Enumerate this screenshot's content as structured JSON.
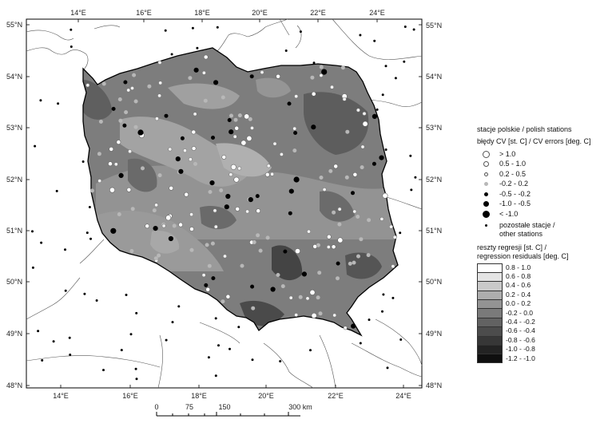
{
  "axes": {
    "lon_top": [
      "14°E",
      "16°E",
      "18°E",
      "20°E",
      "22°E",
      "24°E"
    ],
    "lon_bottom": [
      "14°E",
      "16°E",
      "18°E",
      "20°E",
      "22°E",
      "24°E"
    ],
    "lat_left": [
      "55°N",
      "54°N",
      "53°N",
      "52°N",
      "51°N",
      "50°N",
      "49°N",
      "48°N"
    ],
    "lat_right": [
      "55°N",
      "54°N",
      "53°N",
      "52°N",
      "51°N",
      "50°N",
      "49°N",
      "48°N"
    ]
  },
  "scale_bar": {
    "ticks": [
      "0",
      "75",
      "150",
      "300 km"
    ]
  },
  "legend": {
    "stations_title": "stacje polskie / polish stations",
    "cv_title": "błędy CV [st. C] / CV errors [deg. C]",
    "cv_classes": [
      {
        "label": "> 1.0",
        "fill": "#ffffff",
        "size": 9
      },
      {
        "label": "0.5 - 1.0",
        "fill": "#ffffff",
        "size": 7
      },
      {
        "label": "0.2 - 0.5",
        "fill": "#f2f2f2",
        "size": 5
      },
      {
        "label": "-0.2 - 0.2",
        "fill": "#b8b8b8",
        "size": 5
      },
      {
        "label": "-0.5 - -0.2",
        "fill": "#000000",
        "size": 5
      },
      {
        "label": "-1.0 - -0.5",
        "fill": "#000000",
        "size": 7
      },
      {
        "label": "< -1.0",
        "fill": "#000000",
        "size": 9
      }
    ],
    "other_label_1": "pozostałe stacje /",
    "other_label_2": "other stations",
    "resid_title_1": "reszty regresji [st. C] /",
    "resid_title_2": "regression residuals [deg. C]",
    "resid_classes": [
      {
        "label": "0.8 - 1.0",
        "color": "#ffffff"
      },
      {
        "label": "0.6 - 0.8",
        "color": "#e4e4e4"
      },
      {
        "label": "0.4 - 0.6",
        "color": "#c9c9c9"
      },
      {
        "label": "0.2 - 0.4",
        "color": "#adadad"
      },
      {
        "label": "0.0 - 0.2",
        "color": "#939393"
      },
      {
        "label": "-0.2 - 0.0",
        "color": "#7a7a7a"
      },
      {
        "label": "-0.4 - -0.2",
        "color": "#626262"
      },
      {
        "label": "-0.6 - -0.4",
        "color": "#4c4c4c"
      },
      {
        "label": "-0.8 - -0.6",
        "color": "#373737"
      },
      {
        "label": "-1.0 - -0.8",
        "color": "#232323"
      },
      {
        "label": "-1.2 - -1.0",
        "color": "#0f0f0f"
      }
    ]
  }
}
